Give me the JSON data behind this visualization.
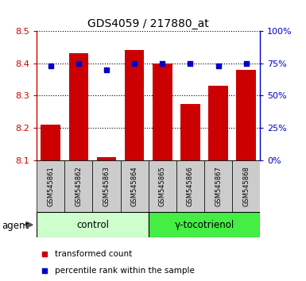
{
  "title": "GDS4059 / 217880_at",
  "samples": [
    "GSM545861",
    "GSM545862",
    "GSM545863",
    "GSM545864",
    "GSM545865",
    "GSM545866",
    "GSM545867",
    "GSM545868"
  ],
  "transformed_counts": [
    8.21,
    8.43,
    8.11,
    8.44,
    8.4,
    8.275,
    8.33,
    8.38
  ],
  "percentile_ranks": [
    73,
    75,
    70,
    75,
    75,
    75,
    73,
    75
  ],
  "bar_color": "#cc0000",
  "dot_color": "#0000cc",
  "ylim_left": [
    8.1,
    8.5
  ],
  "ylim_right": [
    0,
    100
  ],
  "yticks_left": [
    8.1,
    8.2,
    8.3,
    8.4,
    8.5
  ],
  "yticks_right": [
    0,
    25,
    50,
    75,
    100
  ],
  "group1_label": "control",
  "group2_label": "γ-tocotrienol",
  "group1_color": "#ccffcc",
  "group2_color": "#44ee44",
  "sample_label_color": "#cccccc",
  "agent_label": "agent",
  "legend_items": [
    "transformed count",
    "percentile rank within the sample"
  ]
}
